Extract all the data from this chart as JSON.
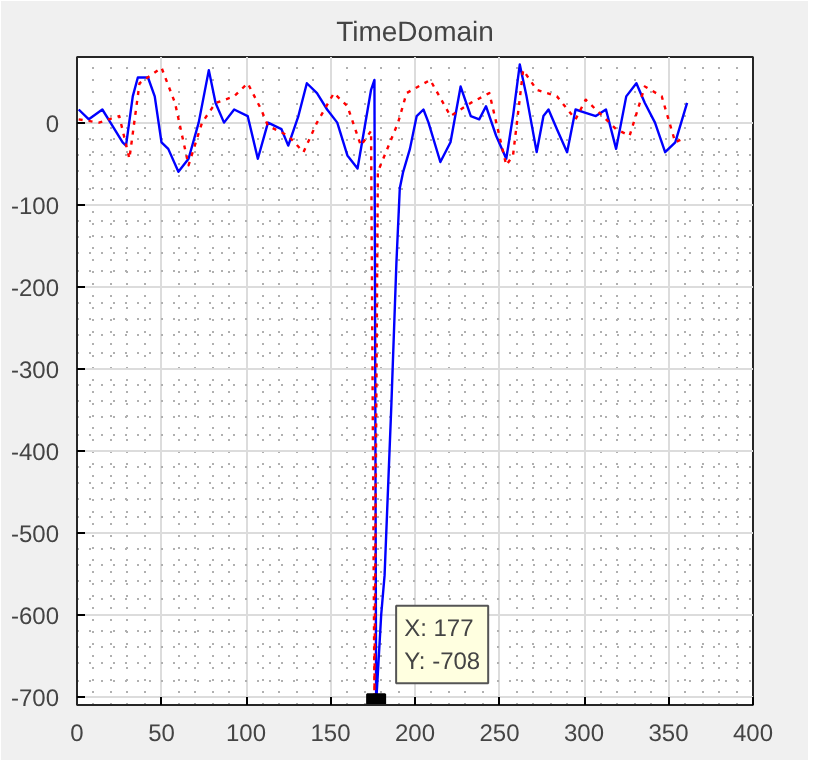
{
  "chart_data": {
    "type": "line",
    "title": "TimeDomain",
    "xlim": [
      0,
      400
    ],
    "ylim": [
      -710,
      80
    ],
    "xticks": [
      0,
      50,
      100,
      150,
      200,
      250,
      300,
      350,
      400
    ],
    "yticks": [
      -700,
      -600,
      -500,
      -400,
      -300,
      -200,
      -100,
      0
    ],
    "grid": true,
    "series": [
      {
        "color": "#0000ff",
        "line_style": "solid",
        "x": [
          1,
          7,
          15,
          21,
          27,
          29,
          33,
          36,
          42,
          46,
          50,
          54,
          60,
          66,
          72,
          78,
          82,
          87,
          93,
          101,
          107,
          113,
          121,
          125,
          131,
          136,
          142,
          148,
          154,
          160,
          166,
          170,
          174,
          176,
          177,
          180,
          182,
          186,
          189,
          191,
          193,
          197,
          201,
          205,
          208,
          215,
          221,
          227,
          233,
          238,
          242,
          248,
          254,
          258,
          262,
          266,
          272,
          276,
          279,
          284,
          290,
          295,
          301,
          307,
          313,
          319,
          325,
          331,
          336,
          342,
          348,
          354,
          361
        ],
        "values": [
          16,
          4,
          16,
          -4,
          -24,
          -28,
          32,
          55,
          55,
          32,
          -24,
          -32,
          -60,
          -44,
          0,
          64,
          24,
          0,
          16,
          8,
          -44,
          0,
          -8,
          -28,
          8,
          48,
          36,
          16,
          0,
          -40,
          -56,
          -8,
          40,
          52,
          -708,
          -600,
          -552,
          -345,
          -171,
          -80,
          -60,
          -32,
          8,
          16,
          0,
          -48,
          -24,
          44,
          8,
          4,
          20,
          -16,
          -44,
          8,
          71,
          32,
          -36,
          8,
          16,
          -8,
          -36,
          16,
          12,
          8,
          16,
          -32,
          32,
          48,
          24,
          0,
          -36,
          -24,
          24
        ]
      },
      {
        "color": "#ff0000",
        "line_style": "dotted",
        "x": [
          1,
          13,
          25,
          31,
          37,
          50,
          58,
          66,
          74,
          82,
          93,
          101,
          109,
          113,
          125,
          134,
          142,
          152,
          160,
          168,
          174,
          176,
          178,
          184,
          190,
          195,
          209,
          221,
          233,
          244,
          254,
          258,
          264,
          272,
          284,
          295,
          301,
          307,
          319,
          327,
          333,
          336,
          346,
          354,
          358
        ],
        "values": [
          4,
          0,
          8,
          -44,
          48,
          67,
          24,
          -52,
          0,
          24,
          32,
          48,
          16,
          -4,
          -16,
          -36,
          0,
          36,
          20,
          -28,
          -10,
          -700,
          -60,
          -30,
          0,
          36,
          52,
          8,
          24,
          36,
          -52,
          -40,
          64,
          40,
          32,
          4,
          28,
          16,
          -8,
          -16,
          24,
          44,
          32,
          -24,
          -20
        ]
      }
    ],
    "annotations": [
      {
        "text": "X: 177\nY: -708",
        "x": 177,
        "y": -708
      }
    ]
  }
}
